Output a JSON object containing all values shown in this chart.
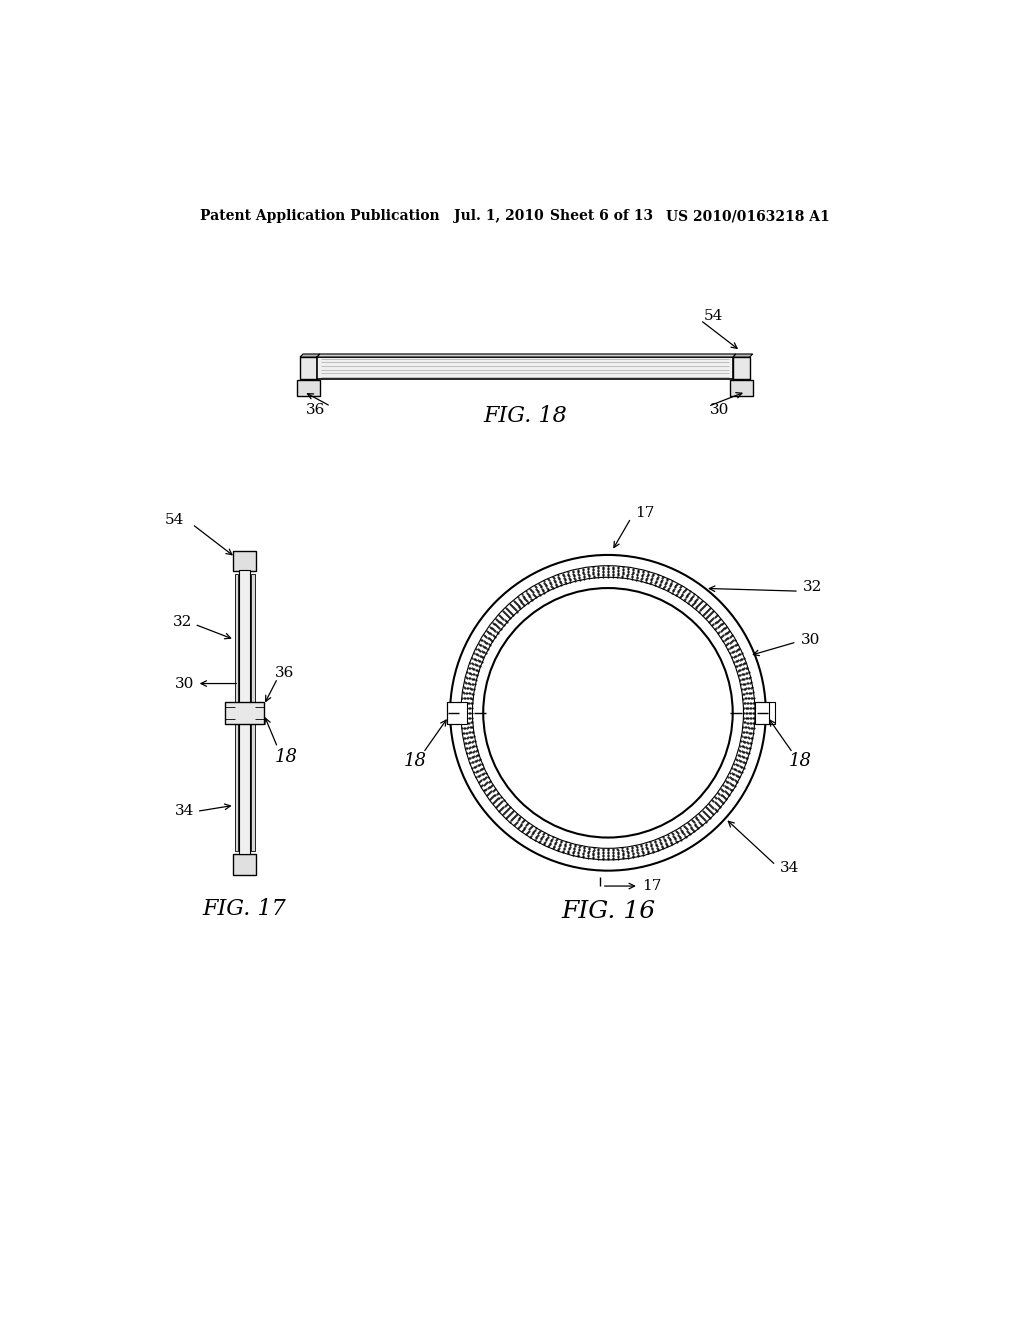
{
  "bg_color": "#ffffff",
  "header_text": "Patent Application Publication",
  "header_date": "Jul. 1, 2010",
  "header_sheet": "Sheet 6 of 13",
  "header_patent": "US 2010/0163218 A1",
  "fig18_label": "FIG. 18",
  "fig17_label": "FIG. 17",
  "fig16_label": "FIG. 16"
}
